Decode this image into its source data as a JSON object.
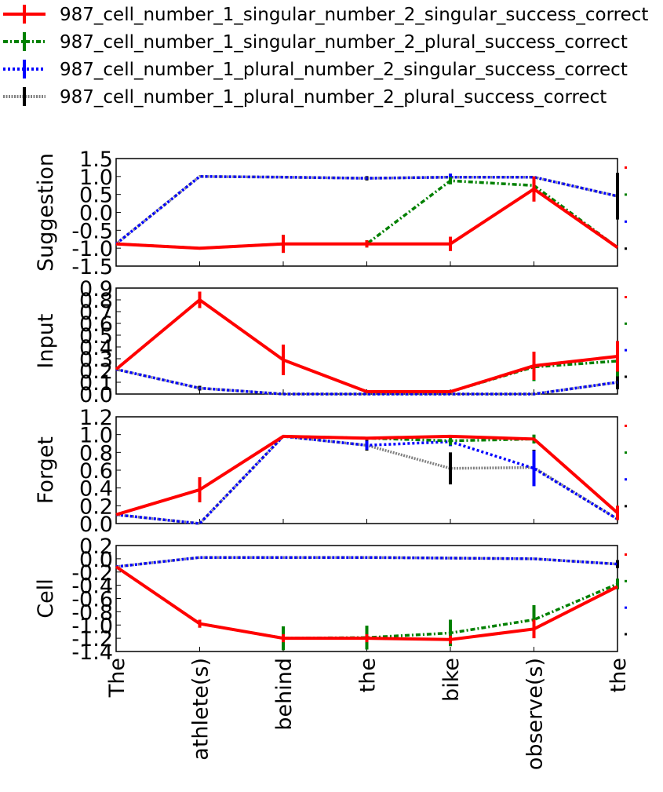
{
  "chart_data": {
    "type": "line",
    "legend_placement": "top-left",
    "grid": false,
    "categories": [
      "The",
      "athlete(s)",
      "behind",
      "the",
      "bike",
      "observe(s)",
      "the"
    ],
    "series": [
      {
        "name": "987_cell_number_1_singular_number_2_singular_success_correct",
        "color": "#ff0000",
        "style": "solid"
      },
      {
        "name": "987_cell_number_1_singular_number_2_plural_success_correct",
        "color": "#008000",
        "style": "dashdot"
      },
      {
        "name": "987_cell_number_1_plural_number_2_singular_success_correct",
        "color": "#0000ff",
        "style": "dotted"
      },
      {
        "name": "987_cell_number_1_plural_number_2_plural_success_correct",
        "color": "#808080",
        "style": "densedot"
      }
    ],
    "panels": [
      {
        "ylabel": "Suggestion",
        "ylim": [
          -1.5,
          1.5
        ],
        "yticks": [
          "-1.5",
          "-1.0",
          "-0.5",
          "0.0",
          "0.5",
          "1.0",
          "1.5"
        ],
        "series_values": [
          [
            -0.88,
            -1.0,
            -0.88,
            -0.88,
            -0.88,
            0.65,
            -0.98
          ],
          [
            -0.88,
            -1.0,
            -0.88,
            -0.88,
            0.88,
            0.75,
            -0.98
          ],
          [
            -0.88,
            1.0,
            0.98,
            0.95,
            0.98,
            0.98,
            0.45
          ],
          [
            -0.88,
            1.0,
            0.98,
            0.95,
            0.98,
            0.98,
            0.45
          ]
        ],
        "errors": [
          [
            0,
            0,
            0.25,
            0.1,
            0.2,
            0.35,
            0
          ],
          [
            0,
            0,
            0.25,
            0.1,
            0.1,
            0.25,
            0
          ],
          [
            0,
            0,
            0,
            0,
            0.1,
            0,
            0
          ],
          [
            0,
            0,
            0,
            0.06,
            0,
            0,
            0.65
          ]
        ]
      },
      {
        "ylabel": "Input",
        "ylim": [
          0.0,
          0.9
        ],
        "yticks": [
          "0.0",
          "0.1",
          "0.2",
          "0.3",
          "0.4",
          "0.5",
          "0.6",
          "0.7",
          "0.8",
          "0.9"
        ],
        "series_values": [
          [
            0.21,
            0.8,
            0.29,
            0.02,
            0.02,
            0.24,
            0.32
          ],
          [
            0.21,
            0.8,
            0.29,
            0.02,
            0.02,
            0.23,
            0.28
          ],
          [
            0.21,
            0.05,
            0.0,
            0.0,
            0.0,
            0.0,
            0.1
          ],
          [
            0.21,
            0.05,
            0.0,
            0.0,
            0.0,
            0.0,
            0.1
          ]
        ],
        "errors": [
          [
            0,
            0.07,
            0.13,
            0,
            0,
            0.12,
            0.13
          ],
          [
            0,
            0.07,
            0.13,
            0,
            0,
            0.12,
            0.13
          ],
          [
            0,
            0,
            0,
            0,
            0,
            0,
            0
          ],
          [
            0,
            0.02,
            0,
            0,
            0,
            0,
            0.06
          ]
        ]
      },
      {
        "ylabel": "Forget",
        "ylim": [
          0.0,
          1.2
        ],
        "yticks": [
          "0.0",
          "0.2",
          "0.4",
          "0.6",
          "0.8",
          "1.0",
          "1.2"
        ],
        "series_values": [
          [
            0.1,
            0.38,
            0.98,
            0.96,
            0.98,
            0.95,
            0.12
          ],
          [
            0.1,
            0.38,
            0.98,
            0.96,
            0.93,
            0.95,
            0.12
          ],
          [
            0.1,
            0.0,
            0.98,
            0.88,
            0.92,
            0.62,
            0.05
          ],
          [
            0.1,
            0.0,
            0.98,
            0.88,
            0.62,
            0.63,
            0.05
          ]
        ],
        "errors": [
          [
            0,
            0.14,
            0,
            0,
            0,
            0,
            0.08
          ],
          [
            0,
            0.14,
            0,
            0,
            0.05,
            0.05,
            0
          ],
          [
            0,
            0,
            0,
            0.05,
            0.05,
            0.2,
            0
          ],
          [
            0,
            0,
            0,
            0.06,
            0.18,
            0.2,
            0
          ]
        ]
      },
      {
        "ylabel": "Cell",
        "ylim": [
          -1.4,
          0.2
        ],
        "yticks": [
          "-1.4",
          "-1.2",
          "-1.0",
          "-0.8",
          "-0.6",
          "-0.4",
          "-0.2",
          "0.0",
          "0.2"
        ],
        "series_values": [
          [
            -0.12,
            -0.98,
            -1.2,
            -1.2,
            -1.22,
            -1.06,
            -0.42
          ],
          [
            -0.12,
            -0.98,
            -1.2,
            -1.19,
            -1.12,
            -0.92,
            -0.38
          ],
          [
            -0.12,
            0.02,
            0.02,
            0.02,
            0.01,
            0.0,
            -0.08
          ],
          [
            -0.12,
            0.02,
            0.02,
            0.02,
            0.01,
            0.0,
            -0.08
          ]
        ],
        "errors": [
          [
            0,
            0.06,
            0.06,
            0.06,
            0.06,
            0.14,
            0
          ],
          [
            0,
            0.06,
            0.18,
            0.18,
            0.2,
            0.22,
            0.08
          ],
          [
            0,
            0,
            0,
            0,
            0,
            0,
            0
          ],
          [
            0,
            0,
            0,
            0,
            0,
            0,
            0.06
          ]
        ]
      }
    ]
  }
}
